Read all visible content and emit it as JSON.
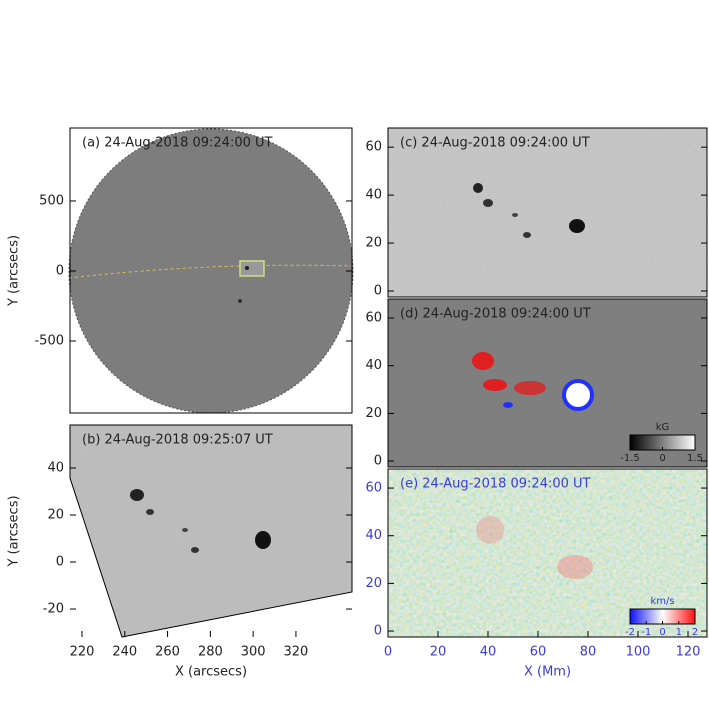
{
  "chart_data": [
    {
      "type": "image",
      "title": "(a) 24-Aug-2018 09:24:00 UT",
      "ylabel": "Y (arcsecs)",
      "ylim": [
        -1014,
        1021
      ],
      "yticks": [
        500,
        0,
        -500
      ]
    },
    {
      "type": "image",
      "title": "(b) 24-Aug-2018 09:25:07 UT",
      "ylabel": "Y (arcsecs)",
      "xlabel": "X (arcsecs)",
      "xlim": [
        214.4,
        346.2
      ],
      "xticks": [
        220,
        240,
        260,
        280,
        300,
        320
      ],
      "ylim": [
        -31.9,
        58.3
      ],
      "yticks": [
        40,
        20,
        0,
        -20
      ]
    },
    {
      "type": "image",
      "title": "(c)  24-Aug-2018 09:24:00 UT",
      "xlim": [
        0,
        127.6
      ],
      "ylim": [
        -2.5,
        68
      ],
      "yticks": [
        0,
        20,
        40,
        60
      ]
    },
    {
      "type": "image",
      "title": "(d)  24-Aug-2018 09:24:00 UT",
      "xlim": [
        0,
        127.6
      ],
      "ylim": [
        -2.5,
        68
      ],
      "yticks": [
        0,
        20,
        40,
        60
      ],
      "colorbar": {
        "label": "kG",
        "ticks": [
          -1.5,
          0,
          1.5
        ],
        "colors": [
          "#000000",
          "#ffffff"
        ]
      }
    },
    {
      "type": "image",
      "title": "(e) 24-Aug-2018 09:24:00 UT",
      "xlabel": "X (Mm)",
      "xlim": [
        0,
        127.6
      ],
      "xticks": [
        0,
        20,
        40,
        60,
        80,
        100,
        120
      ],
      "ylim": [
        -2.5,
        68
      ],
      "yticks": [
        0,
        20,
        40,
        60
      ],
      "colorbar": {
        "label": "km/s",
        "ticks": [
          -2,
          -1,
          0,
          1,
          2
        ],
        "colors": [
          "#1010ff",
          "#ffffff",
          "#ff1010"
        ]
      }
    }
  ]
}
